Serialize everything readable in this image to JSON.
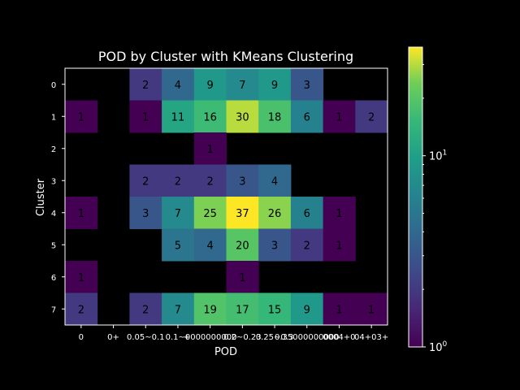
{
  "chart_data": {
    "type": "heatmap",
    "title": "POD by Cluster with KMeans Clustering",
    "xlabel": "POD",
    "ylabel": "Cluster",
    "x_tick_labels": [
      "0",
      "0+",
      "0.05~0.1",
      "0.1~0",
      "+000000000",
      "0.2~0.23",
      "0.25~0.3",
      "0.35000000000",
      "0004+0",
      "04+03+"
    ],
    "y_tick_labels": [
      "0",
      "1",
      "2",
      "3",
      "4",
      "5",
      "6",
      "7"
    ],
    "values": [
      [
        null,
        null,
        2,
        4,
        9,
        7,
        9,
        3,
        null,
        null
      ],
      [
        1,
        null,
        1,
        11,
        16,
        30,
        18,
        6,
        1,
        2
      ],
      [
        null,
        null,
        null,
        null,
        1,
        null,
        null,
        null,
        null,
        null
      ],
      [
        null,
        null,
        2,
        2,
        2,
        3,
        4,
        null,
        null,
        null
      ],
      [
        1,
        null,
        3,
        7,
        25,
        37,
        26,
        6,
        1,
        null
      ],
      [
        null,
        null,
        null,
        5,
        4,
        20,
        3,
        2,
        1,
        null
      ],
      [
        1,
        null,
        null,
        null,
        null,
        1,
        null,
        null,
        null,
        null
      ],
      [
        2,
        null,
        2,
        7,
        19,
        17,
        15,
        9,
        1,
        1
      ]
    ],
    "colormap": "viridis",
    "color_scale": "log",
    "color_range": [
      1,
      37
    ],
    "colorbar_tick_labels": [
      "10^0",
      "10^1"
    ]
  }
}
